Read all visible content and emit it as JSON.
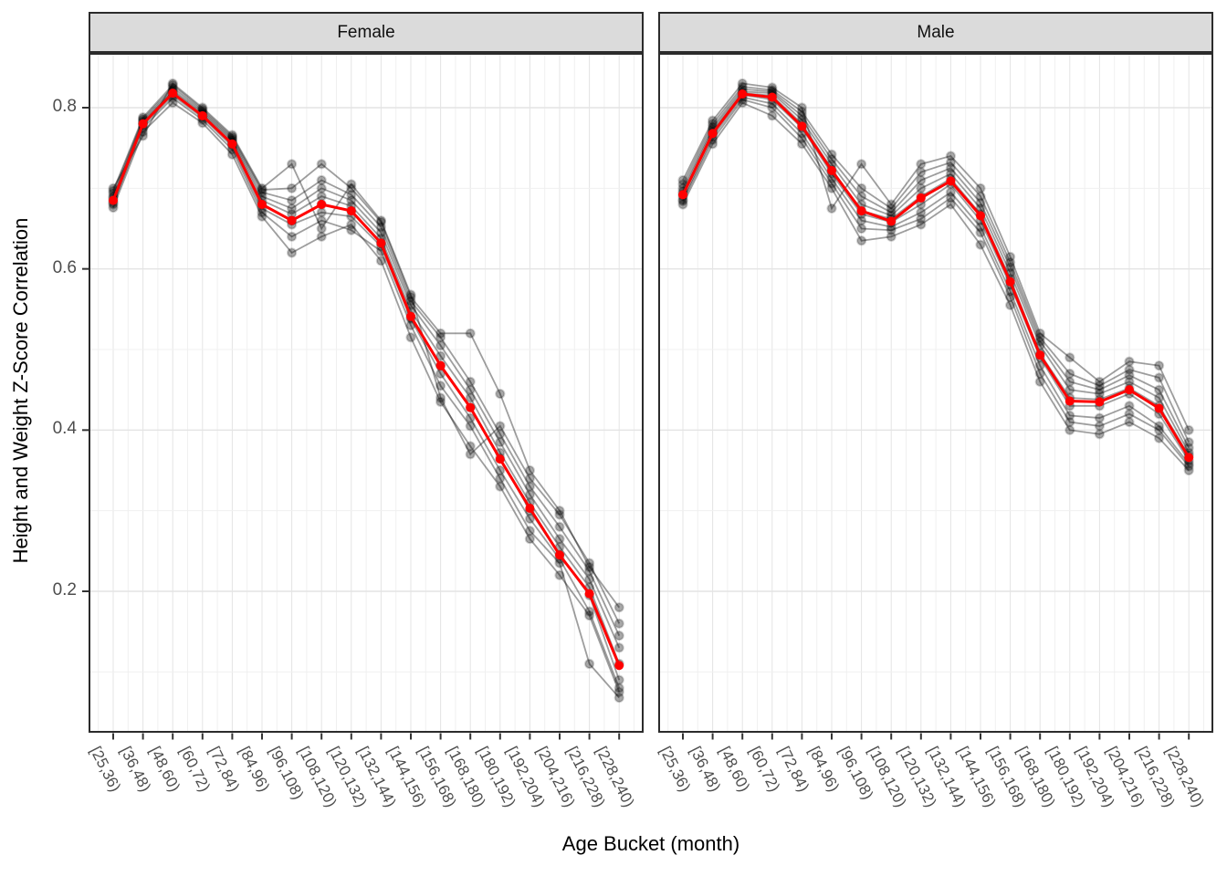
{
  "chart_data": {
    "type": "line",
    "title": "",
    "xlabel": "Age Bucket (month)",
    "ylabel": "Height and Weight Z-Score Correlation",
    "y_ticks": [
      "0.2",
      "0.4",
      "0.6",
      "0.8"
    ],
    "y_tick_values": [
      0.2,
      0.4,
      0.6,
      0.8
    ],
    "y_minor_values": [
      0.1,
      0.3,
      0.5,
      0.7
    ],
    "ylim": [
      0.025,
      0.868
    ],
    "grid": "on",
    "legend_position": "none",
    "categories": [
      "[25,36)",
      "[36,48)",
      "[48,60)",
      "[60,72)",
      "[72,84)",
      "[84,96)",
      "[96,108)",
      "[108,120)",
      "[120,132)",
      "[132,144)",
      "[144,156)",
      "[156,168)",
      "[168,180)",
      "[180,192)",
      "[192,204)",
      "[204,216)",
      "[216,228)",
      "[228,240)"
    ],
    "facets": [
      {
        "label": "Female",
        "mean_series": {
          "name": "mean",
          "values": [
            0.685,
            0.78,
            0.818,
            0.79,
            0.755,
            0.68,
            0.66,
            0.68,
            0.672,
            0.632,
            0.541,
            0.48,
            0.428,
            0.364,
            0.303,
            0.245,
            0.197,
            0.108
          ]
        },
        "individual_series": [
          [
            0.676,
            0.77,
            0.806,
            0.781,
            0.742,
            0.665,
            0.62,
            0.64,
            0.655,
            0.61,
            0.515,
            0.435,
            0.38,
            0.33,
            0.265,
            0.22,
            0.17,
            0.075
          ],
          [
            0.68,
            0.775,
            0.812,
            0.785,
            0.748,
            0.67,
            0.64,
            0.66,
            0.648,
            0.622,
            0.53,
            0.455,
            0.405,
            0.34,
            0.275,
            0.235,
            0.11,
            0.068
          ],
          [
            0.682,
            0.778,
            0.815,
            0.788,
            0.752,
            0.675,
            0.655,
            0.67,
            0.665,
            0.628,
            0.538,
            0.47,
            0.415,
            0.35,
            0.29,
            0.24,
            0.175,
            0.08
          ],
          [
            0.685,
            0.78,
            0.818,
            0.79,
            0.755,
            0.68,
            0.66,
            0.68,
            0.672,
            0.632,
            0.54,
            0.48,
            0.428,
            0.365,
            0.3,
            0.245,
            0.195,
            0.09
          ],
          [
            0.688,
            0.782,
            0.82,
            0.792,
            0.758,
            0.685,
            0.668,
            0.69,
            0.678,
            0.638,
            0.548,
            0.492,
            0.44,
            0.372,
            0.31,
            0.255,
            0.205,
            0.11
          ],
          [
            0.69,
            0.784,
            0.822,
            0.794,
            0.76,
            0.69,
            0.675,
            0.7,
            0.685,
            0.645,
            0.555,
            0.505,
            0.45,
            0.385,
            0.32,
            0.265,
            0.215,
            0.13
          ],
          [
            0.694,
            0.786,
            0.825,
            0.796,
            0.762,
            0.695,
            0.685,
            0.71,
            0.692,
            0.652,
            0.56,
            0.515,
            0.46,
            0.395,
            0.33,
            0.28,
            0.225,
            0.145
          ],
          [
            0.697,
            0.788,
            0.828,
            0.798,
            0.764,
            0.698,
            0.7,
            0.73,
            0.7,
            0.658,
            0.565,
            0.52,
            0.52,
            0.445,
            0.35,
            0.3,
            0.23,
            0.18
          ],
          [
            0.7,
            0.765,
            0.83,
            0.8,
            0.766,
            0.7,
            0.73,
            0.65,
            0.705,
            0.66,
            0.568,
            0.44,
            0.37,
            0.405,
            0.34,
            0.295,
            0.235,
            0.16
          ]
        ]
      },
      {
        "label": "Male",
        "mean_series": {
          "name": "mean",
          "values": [
            0.692,
            0.768,
            0.817,
            0.813,
            0.777,
            0.722,
            0.672,
            0.659,
            0.688,
            0.709,
            0.666,
            0.584,
            0.493,
            0.436,
            0.435,
            0.45,
            0.427,
            0.366
          ]
        },
        "individual_series": [
          [
            0.68,
            0.755,
            0.806,
            0.79,
            0.755,
            0.7,
            0.635,
            0.64,
            0.655,
            0.68,
            0.63,
            0.555,
            0.46,
            0.4,
            0.395,
            0.41,
            0.39,
            0.35
          ],
          [
            0.684,
            0.76,
            0.81,
            0.8,
            0.762,
            0.706,
            0.65,
            0.648,
            0.662,
            0.688,
            0.645,
            0.565,
            0.47,
            0.41,
            0.405,
            0.42,
            0.4,
            0.355
          ],
          [
            0.686,
            0.764,
            0.813,
            0.805,
            0.768,
            0.712,
            0.66,
            0.652,
            0.67,
            0.695,
            0.652,
            0.572,
            0.48,
            0.418,
            0.415,
            0.43,
            0.405,
            0.358
          ],
          [
            0.69,
            0.768,
            0.816,
            0.81,
            0.775,
            0.718,
            0.668,
            0.658,
            0.68,
            0.705,
            0.66,
            0.58,
            0.49,
            0.43,
            0.43,
            0.445,
            0.42,
            0.362
          ],
          [
            0.693,
            0.77,
            0.818,
            0.815,
            0.78,
            0.724,
            0.672,
            0.662,
            0.69,
            0.712,
            0.668,
            0.588,
            0.495,
            0.44,
            0.438,
            0.452,
            0.43,
            0.368
          ],
          [
            0.696,
            0.773,
            0.82,
            0.818,
            0.785,
            0.73,
            0.68,
            0.666,
            0.7,
            0.718,
            0.675,
            0.595,
            0.505,
            0.45,
            0.445,
            0.46,
            0.44,
            0.372
          ],
          [
            0.7,
            0.776,
            0.823,
            0.82,
            0.79,
            0.736,
            0.69,
            0.67,
            0.71,
            0.725,
            0.682,
            0.602,
            0.51,
            0.46,
            0.45,
            0.468,
            0.45,
            0.378
          ],
          [
            0.705,
            0.78,
            0.826,
            0.822,
            0.795,
            0.742,
            0.7,
            0.675,
            0.72,
            0.732,
            0.69,
            0.608,
            0.515,
            0.47,
            0.455,
            0.475,
            0.465,
            0.385
          ],
          [
            0.71,
            0.784,
            0.83,
            0.825,
            0.8,
            0.675,
            0.73,
            0.68,
            0.73,
            0.74,
            0.7,
            0.615,
            0.52,
            0.49,
            0.46,
            0.485,
            0.48,
            0.4
          ]
        ]
      }
    ],
    "colors": {
      "mean_line": "#FF0000",
      "individual_line": "#000000",
      "individual_line_opacity": 0.38,
      "individual_point_opacity": 0.34,
      "grid_major": "#E4E4E4",
      "grid_minor": "#F0F0F0",
      "strip_bg": "#DBDBDB",
      "panel_border": "#2B2B2B",
      "tick_mark": "#333333",
      "axis_text": "#4D4D4D",
      "title_text": "#000000",
      "background": "#FFFFFF"
    }
  }
}
